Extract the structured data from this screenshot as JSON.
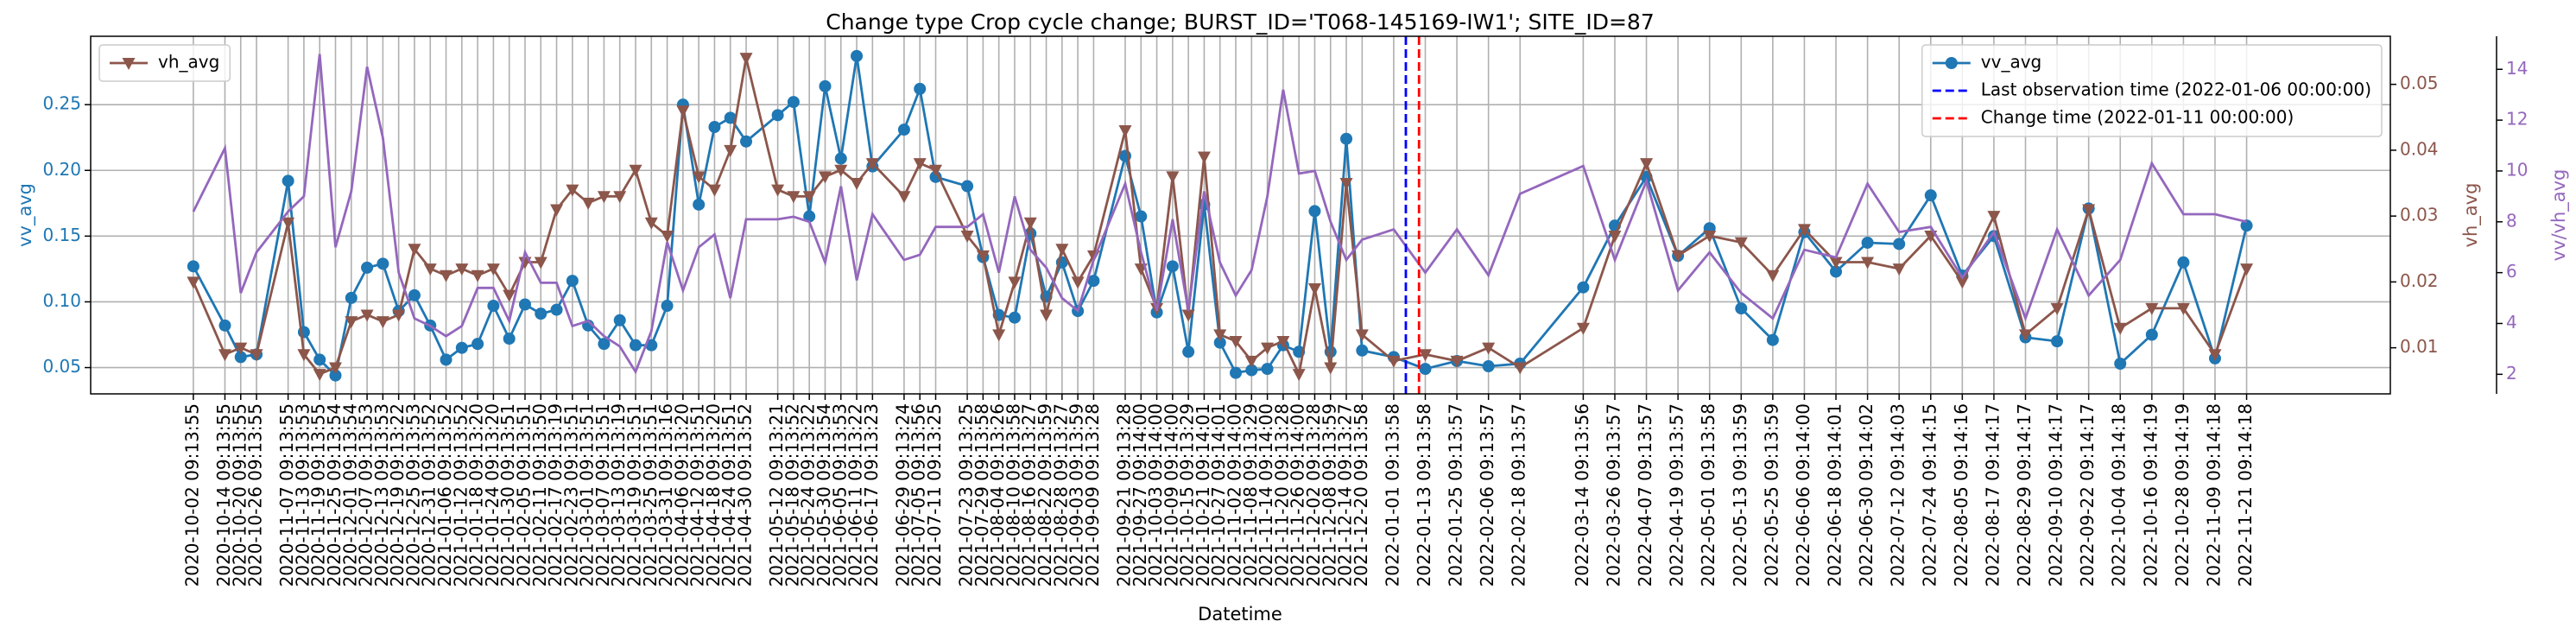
{
  "chart_data": {
    "type": "line",
    "title": "Change type Crop cycle change; BURST_ID='T068-145169-IW1'; SITE_ID=87",
    "xlabel": "Datetime",
    "ylabel": "vv_avg",
    "y2label": "vh_avg",
    "y3label": "vv/vh_avg",
    "x": [
      "2020-10-02 09:13:55",
      "2020-10-14 09:13:55",
      "2020-10-20 09:13:55",
      "2020-10-26 09:13:55",
      "2020-11-07 09:13:55",
      "2020-11-13 09:13:53",
      "2020-11-19 09:13:55",
      "2020-11-25 09:13:54",
      "2020-12-01 09:13:54",
      "2020-12-07 09:13:53",
      "2020-12-13 09:13:53",
      "2020-12-19 09:13:22",
      "2020-12-25 09:13:53",
      "2020-12-31 09:13:52",
      "2021-01-06 09:13:52",
      "2021-01-12 09:13:52",
      "2021-01-18 09:13:20",
      "2021-01-24 09:13:20",
      "2021-01-30 09:13:51",
      "2021-02-05 09:13:51",
      "2021-02-11 09:13:50",
      "2021-02-17 09:13:19",
      "2021-02-23 09:13:51",
      "2021-03-01 09:13:51",
      "2021-03-07 09:13:51",
      "2021-03-13 09:13:19",
      "2021-03-19 09:13:51",
      "2021-03-25 09:13:51",
      "2021-03-31 09:13:16",
      "2021-04-06 09:13:20",
      "2021-04-12 09:13:51",
      "2021-04-18 09:13:20",
      "2021-04-24 09:13:51",
      "2021-04-30 09:13:52",
      "2021-05-12 09:13:21",
      "2021-05-18 09:13:52",
      "2021-05-24 09:13:22",
      "2021-05-30 09:13:54",
      "2021-06-05 09:13:53",
      "2021-06-11 09:13:22",
      "2021-06-17 09:13:23",
      "2021-06-29 09:13:24",
      "2021-07-05 09:13:56",
      "2021-07-11 09:13:25",
      "2021-07-23 09:13:25",
      "2021-07-29 09:13:58",
      "2021-08-04 09:13:26",
      "2021-08-10 09:13:58",
      "2021-08-16 09:13:27",
      "2021-08-22 09:13:59",
      "2021-08-28 09:13:27",
      "2021-09-03 09:13:59",
      "2021-09-09 09:13:28",
      "2021-09-21 09:13:28",
      "2021-09-27 09:14:00",
      "2021-10-03 09:14:00",
      "2021-10-09 09:14:00",
      "2021-10-15 09:13:29",
      "2021-10-21 09:14:01",
      "2021-10-27 09:14:01",
      "2021-11-02 09:14:00",
      "2021-11-08 09:13:29",
      "2021-11-14 09:14:00",
      "2021-11-20 09:13:28",
      "2021-11-26 09:14:00",
      "2021-12-02 09:13:28",
      "2021-12-08 09:13:59",
      "2021-12-14 09:13:27",
      "2021-12-20 09:13:58",
      "2022-01-01 09:13:58",
      "2022-01-13 09:13:58",
      "2022-01-25 09:13:57",
      "2022-02-06 09:13:57",
      "2022-02-18 09:13:57",
      "2022-03-14 09:13:56",
      "2022-03-26 09:13:57",
      "2022-04-07 09:13:57",
      "2022-04-19 09:13:57",
      "2022-05-01 09:13:58",
      "2022-05-13 09:13:59",
      "2022-05-25 09:13:59",
      "2022-06-06 09:14:00",
      "2022-06-18 09:14:01",
      "2022-06-30 09:14:02",
      "2022-07-12 09:14:03",
      "2022-07-24 09:14:15",
      "2022-08-05 09:14:16",
      "2022-08-17 09:14:17",
      "2022-08-29 09:14:17",
      "2022-09-10 09:14:17",
      "2022-09-22 09:14:17",
      "2022-10-04 09:14:18",
      "2022-10-16 09:14:19",
      "2022-10-28 09:14:19",
      "2022-11-09 09:14:18",
      "2022-11-21 09:14:18"
    ],
    "series": [
      {
        "name": "vv_avg",
        "color": "#1f77b4",
        "marker": "o",
        "legend": "upper right",
        "values": [
          0.127,
          0.082,
          0.058,
          0.06,
          0.192,
          0.077,
          0.056,
          0.044,
          0.103,
          0.126,
          0.129,
          0.093,
          0.105,
          0.082,
          0.056,
          0.065,
          0.068,
          0.097,
          0.072,
          0.098,
          0.091,
          0.094,
          0.116,
          0.082,
          0.068,
          0.086,
          0.067,
          0.067,
          0.097,
          0.25,
          0.174,
          0.233,
          0.24,
          0.222,
          0.242,
          0.252,
          0.165,
          0.264,
          0.209,
          0.287,
          0.203,
          0.231,
          0.262,
          0.195,
          0.188,
          0.134,
          0.09,
          0.088,
          0.152,
          0.104,
          0.13,
          0.093,
          0.116,
          0.211,
          0.165,
          0.092,
          0.127,
          0.062,
          0.174,
          0.069,
          0.046,
          0.048,
          0.049,
          0.067,
          0.062,
          0.169,
          0.062,
          0.224,
          0.063,
          0.058,
          0.049,
          0.055,
          0.051,
          0.053,
          0.111,
          0.158,
          0.195,
          0.135,
          0.156,
          0.095,
          0.071,
          0.153,
          0.123,
          0.145,
          0.144,
          0.181,
          0.12,
          0.15,
          0.073,
          0.07,
          0.171,
          0.053,
          0.075,
          0.13,
          0.057,
          0.158
        ]
      },
      {
        "name": "vh_avg",
        "color": "#8c564b",
        "marker": "v",
        "axis": "y2",
        "legend": "upper left",
        "values": [
          0.02,
          0.009,
          0.01,
          0.009,
          0.029,
          0.009,
          0.006,
          0.007,
          0.014,
          0.015,
          0.014,
          0.015,
          0.025,
          0.022,
          0.021,
          0.022,
          0.021,
          0.022,
          0.018,
          0.023,
          0.023,
          0.031,
          0.034,
          0.032,
          0.033,
          0.033,
          0.037,
          0.029,
          0.027,
          0.046,
          0.036,
          0.034,
          0.04,
          0.054,
          0.034,
          0.033,
          0.033,
          0.036,
          0.037,
          0.035,
          0.038,
          0.033,
          0.038,
          0.037,
          0.027,
          0.024,
          0.012,
          0.02,
          0.029,
          0.015,
          0.025,
          0.02,
          0.024,
          0.043,
          0.022,
          0.016,
          0.036,
          0.015,
          0.039,
          0.012,
          0.011,
          0.008,
          0.01,
          0.011,
          0.006,
          0.019,
          0.007,
          0.035,
          0.012,
          0.008,
          0.009,
          0.008,
          0.01,
          0.007,
          0.013,
          0.027,
          0.038,
          0.024,
          0.027,
          0.026,
          0.021,
          0.028,
          0.023,
          0.023,
          0.022,
          0.027,
          0.02,
          0.03,
          0.012,
          0.016,
          0.031,
          0.013,
          0.016,
          0.016,
          0.009,
          0.022
        ]
      },
      {
        "color": "#9467bd",
        "axis": "y3",
        "values": [
          8.4,
          10.9,
          5.2,
          6.8,
          8.4,
          9.0,
          14.6,
          7.0,
          9.2,
          14.1,
          11.3,
          6.0,
          4.2,
          3.9,
          3.5,
          3.9,
          5.4,
          5.4,
          4.1,
          6.8,
          5.6,
          5.6,
          3.9,
          4.1,
          3.5,
          3.1,
          2.1,
          3.7,
          7.2,
          5.3,
          7.0,
          7.5,
          5.0,
          8.1,
          8.1,
          8.2,
          8.0,
          6.4,
          9.4,
          5.7,
          8.3,
          6.5,
          6.7,
          7.8,
          7.8,
          8.3,
          6.0,
          9.0,
          6.9,
          6.2,
          5.0,
          4.5,
          6.5,
          9.5,
          6.8,
          4.5,
          8.1,
          4.5,
          9.2,
          6.4,
          5.1,
          6.1,
          9.0,
          13.2,
          9.9,
          10.0,
          8.0,
          6.5,
          7.3,
          7.7,
          6.0,
          7.7,
          5.9,
          9.1,
          10.2,
          6.5,
          9.6,
          5.3,
          6.8,
          5.2,
          4.2,
          6.9,
          6.6,
          9.5,
          7.6,
          7.8,
          5.8,
          7.6,
          4.2,
          7.7,
          5.1,
          6.5,
          10.3,
          8.3,
          8.3,
          8.0
        ]
      }
    ],
    "vlines": [
      {
        "name": "Last observation time (2022-01-06 00:00:00)",
        "x": "2022-01-06 00:00:00",
        "color": "#0000ff",
        "legend": "upper right"
      },
      {
        "name": "Change time (2022-01-11 00:00:00)",
        "x": "2022-01-11 00:00:00",
        "color": "#ff0000",
        "legend": "upper right"
      }
    ],
    "ylim": [
      0.03,
      0.302
    ],
    "yticks": [
      0.05,
      {
        "value": 0.1,
        "label": "0.10"
      },
      0.15,
      {
        "value": 0.2,
        "label": "0.20"
      },
      0.25
    ],
    "y2lim": [
      0.003,
      0.0573
    ],
    "y2ticks": [
      0.01,
      0.02,
      0.03,
      0.04,
      0.05
    ],
    "y3lim": [
      1.23,
      15.3
    ],
    "y3ticks": [
      2,
      4,
      6,
      8,
      10,
      12,
      14
    ],
    "grid": true
  }
}
